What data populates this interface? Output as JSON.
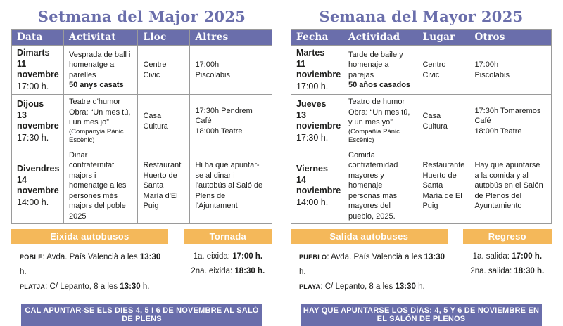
{
  "theme": {
    "purple": "#6a6eab",
    "orange": "#f4b85a",
    "table_border": "#9a9a9a",
    "text": "#1d1d1b",
    "banner_text": "#ffffff"
  },
  "panels": [
    {
      "title": "Setmana del Major 2025",
      "columns": [
        "Data",
        "Activitat",
        "Lloc",
        "Altres"
      ],
      "rows": [
        {
          "day": "Dimarts\n11 novembre",
          "time": "17:00 h.",
          "activity": "Vesprada de ball i homenatge a parelles",
          "activity_bold": "50 anys casats",
          "activity_note": "",
          "place": "Centre\nCivic",
          "other": "17:00h\nPiscolabis"
        },
        {
          "day": "Dijous\n13 novembre",
          "time": "17:30 h.",
          "activity": "Teatre d'humor\nObra:  “Un mes tú, i un mes jo”",
          "activity_bold": "",
          "activity_note": "(Companyia Pànic Escènic)",
          "place": "Casa\nCultura",
          "other": "17:30h Pendrem Café\n18:00h Teatre"
        },
        {
          "day": "Divendres\n14 novembre",
          "time": "14:00 h.",
          "activity": "Dinar confraternitat majors i homenatge a les persones més majors del poble 2025",
          "activity_bold": "",
          "activity_note": "",
          "place": "Restaurant Huerto de Santa María d'El Puig",
          "other": "Hi ha que apuntar-se al dinar i l'autobús al Saló de Plens de l'Ajuntament"
        }
      ],
      "departure": {
        "title": "Eixida autobusos",
        "lines": [
          {
            "label": "Poble",
            "text": ":  Avda. País Valencià a les",
            "time": "13:30",
            "suffix": "h."
          },
          {
            "label": "Platja",
            "text": ": C/ Lepanto, 8 a les",
            "time": "13:30",
            "suffix": "h."
          }
        ]
      },
      "return": {
        "title": "Tornada",
        "lines": [
          {
            "text": "1a. eixida:",
            "time": "17:00 h."
          },
          {
            "text": "2na. eixida:",
            "time": "18:30 h."
          }
        ]
      },
      "footer": "CAL APUNTAR-SE ELS DIES 4, 5 I 6 DE NOVEMBRE AL SALÓ DE PLENS"
    },
    {
      "title": "Semana del Mayor 2025",
      "columns": [
        "Fecha",
        "Actividad",
        "Lugar",
        "Otros"
      ],
      "rows": [
        {
          "day": "Martes\n11 noviembre",
          "time": "17:00 h.",
          "activity": "Tarde de baile  y\nhomenaje a parejas",
          "activity_bold": "50 años casados",
          "activity_note": "",
          "place": "Centro\nCivic",
          "other": "17:00h\nPiscolabis"
        },
        {
          "day": "Jueves\n13 noviembre",
          "time": "17:30 h.",
          "activity": "Teatro de humor\nObra:  “Un mes tú, y un mes yo”",
          "activity_bold": "",
          "activity_note": "(Compañia Pànic Escènic)",
          "place": "Casa\nCultura",
          "other": "17:30h Tomaremos Café\n18:00h Teatre"
        },
        {
          "day": "Viernes\n14 noviembre",
          "time": "14:00 h.",
          "activity": "Comida confraternidad mayores y homenaje personas más mayores del pueblo, 2025.",
          "activity_bold": "",
          "activity_note": "",
          "place": "Restaurante Huerto de Santa María de El Puig",
          "other": "Hay que apuntarse a la comida y al autobús en el Salón de Plenos del Ayuntamiento"
        }
      ],
      "departure": {
        "title": "Salida autobuses",
        "lines": [
          {
            "label": "Pueblo",
            "text": ":  Avda. País Valencià a les",
            "time": "13:30",
            "suffix": "h."
          },
          {
            "label": "Playa",
            "text": ": C/ Lepanto, 8 a les",
            "time": "13:30",
            "suffix": "h."
          }
        ]
      },
      "return": {
        "title": "Regreso",
        "lines": [
          {
            "text": "1a. salida:",
            "time": "17:00 h."
          },
          {
            "text": "2na. salida:",
            "time": "18:30 h."
          }
        ]
      },
      "footer": "HAY QUE APUNTARSE LOS DÍAS:  4, 5 Y 6 DE NOVIEMBRE EN EL SALÓN DE PLENOS"
    }
  ]
}
